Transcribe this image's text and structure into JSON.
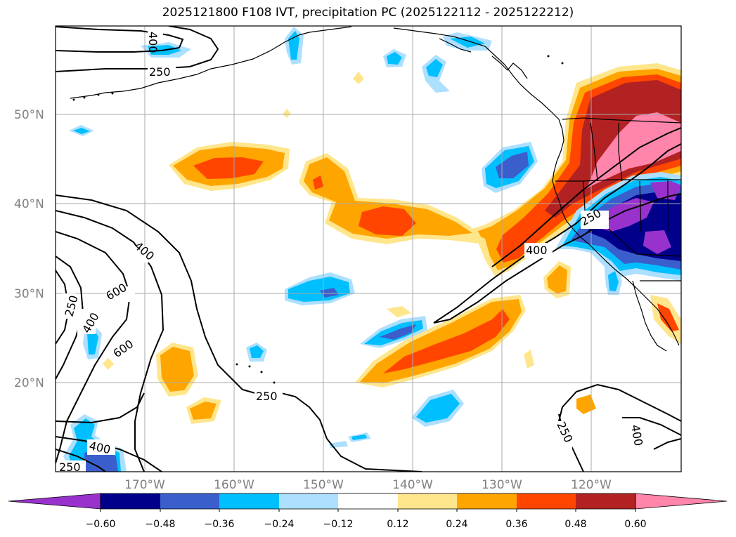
{
  "title": "2025121800 F108 IVT, precipitation PC (2025122112 - 2025122212)",
  "latitude_labels": [
    "50°N",
    "40°N",
    "30°N",
    "20°N"
  ],
  "longitude_labels": [
    "170°W",
    "160°W",
    "150°W",
    "140°W",
    "130°W",
    "120°W"
  ],
  "ivt_contour_labels": [
    "400",
    "250",
    "400",
    "600",
    "250",
    "400",
    "600",
    "250",
    "250",
    "400",
    "400",
    "250",
    "250",
    "400"
  ],
  "colorbar": {
    "ticks": [
      "−0.60",
      "−0.48",
      "−0.36",
      "−0.24",
      "−0.12",
      "0.12",
      "0.24",
      "0.36",
      "0.48",
      "0.60"
    ],
    "colors": [
      "#9932CC",
      "#00008B",
      "#3A5FCD",
      "#00BFFF",
      "#ADDFFF",
      "#FFFFFF",
      "#FFE68C",
      "#FFA500",
      "#FF4500",
      "#B22222",
      "#FF85AA"
    ]
  }
}
